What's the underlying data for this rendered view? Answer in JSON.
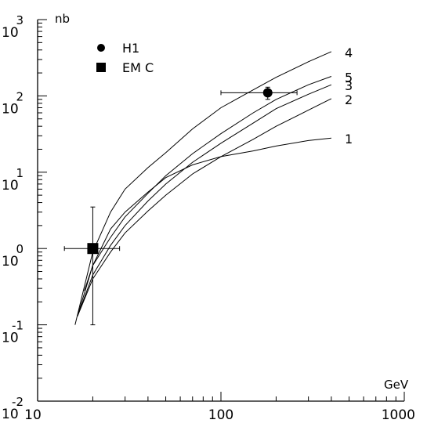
{
  "chart_data": {
    "type": "line",
    "xlabel": "GeV",
    "ylabel": "nb",
    "x_scale": "log",
    "y_scale": "log",
    "xlim": [
      10,
      1000
    ],
    "ylim": [
      0.01,
      1000
    ],
    "x_ticks": [
      {
        "value": 10,
        "label": "10"
      },
      {
        "value": 100,
        "label": "100"
      },
      {
        "value": 1000,
        "label": "1000"
      }
    ],
    "y_ticks": [
      {
        "value": 0.01,
        "base": "10",
        "exp": "-2"
      },
      {
        "value": 0.1,
        "base": "10",
        "exp": "-1"
      },
      {
        "value": 1,
        "base": "10",
        "exp": "0"
      },
      {
        "value": 10,
        "base": "10",
        "exp": "1"
      },
      {
        "value": 100,
        "base": "10",
        "exp": "2"
      },
      {
        "value": 1000,
        "base": "10",
        "exp": "3"
      }
    ],
    "series": [
      {
        "label": "1",
        "points": [
          [
            18,
            0.28
          ],
          [
            20,
            0.6
          ],
          [
            25,
            1.8
          ],
          [
            30,
            3.0
          ],
          [
            40,
            5.5
          ],
          [
            50,
            8.5
          ],
          [
            70,
            12.5
          ],
          [
            100,
            16
          ],
          [
            150,
            19
          ],
          [
            200,
            22
          ],
          [
            300,
            26
          ],
          [
            400,
            28
          ]
        ]
      },
      {
        "label": "2",
        "points": [
          [
            16.5,
            0.13
          ],
          [
            20,
            0.4
          ],
          [
            25,
            0.9
          ],
          [
            30,
            1.6
          ],
          [
            40,
            3.1
          ],
          [
            50,
            5.0
          ],
          [
            70,
            9.5
          ],
          [
            100,
            16
          ],
          [
            150,
            27
          ],
          [
            200,
            40
          ],
          [
            300,
            65
          ],
          [
            400,
            92
          ]
        ]
      },
      {
        "label": "3",
        "points": [
          [
            16.5,
            0.13
          ],
          [
            20,
            0.45
          ],
          [
            25,
            1.1
          ],
          [
            30,
            2.0
          ],
          [
            40,
            4.2
          ],
          [
            50,
            7.0
          ],
          [
            70,
            13.5
          ],
          [
            100,
            24
          ],
          [
            150,
            44
          ],
          [
            200,
            68
          ],
          [
            300,
            105
          ],
          [
            400,
            140
          ]
        ]
      },
      {
        "label": "5",
        "points": [
          [
            16.5,
            0.13
          ],
          [
            20,
            0.6
          ],
          [
            25,
            1.4
          ],
          [
            30,
            2.6
          ],
          [
            40,
            5.3
          ],
          [
            50,
            9.0
          ],
          [
            70,
            17.5
          ],
          [
            100,
            32
          ],
          [
            150,
            60
          ],
          [
            200,
            90
          ],
          [
            300,
            140
          ],
          [
            400,
            180
          ]
        ]
      },
      {
        "label": "4",
        "points": [
          [
            16,
            0.1
          ],
          [
            20,
            0.9
          ],
          [
            25,
            3.0
          ],
          [
            30,
            6.0
          ],
          [
            40,
            11.5
          ],
          [
            50,
            18
          ],
          [
            70,
            37
          ],
          [
            100,
            70
          ],
          [
            150,
            120
          ],
          [
            200,
            175
          ],
          [
            300,
            280
          ],
          [
            400,
            380
          ]
        ]
      }
    ],
    "data_points": [
      {
        "name": "H1",
        "marker": "circle",
        "x": 180,
        "y": 110,
        "x_err": [
          100,
          260
        ],
        "y_err": [
          90,
          130
        ]
      },
      {
        "name": "EMC",
        "marker": "square",
        "x": 20,
        "y": 1.0,
        "y_err": [
          0.1,
          3.5
        ],
        "x_err": [
          14,
          28
        ]
      }
    ]
  },
  "legend": [
    {
      "marker": "circle",
      "label": "H1"
    },
    {
      "marker": "square",
      "label": "EM C"
    }
  ]
}
